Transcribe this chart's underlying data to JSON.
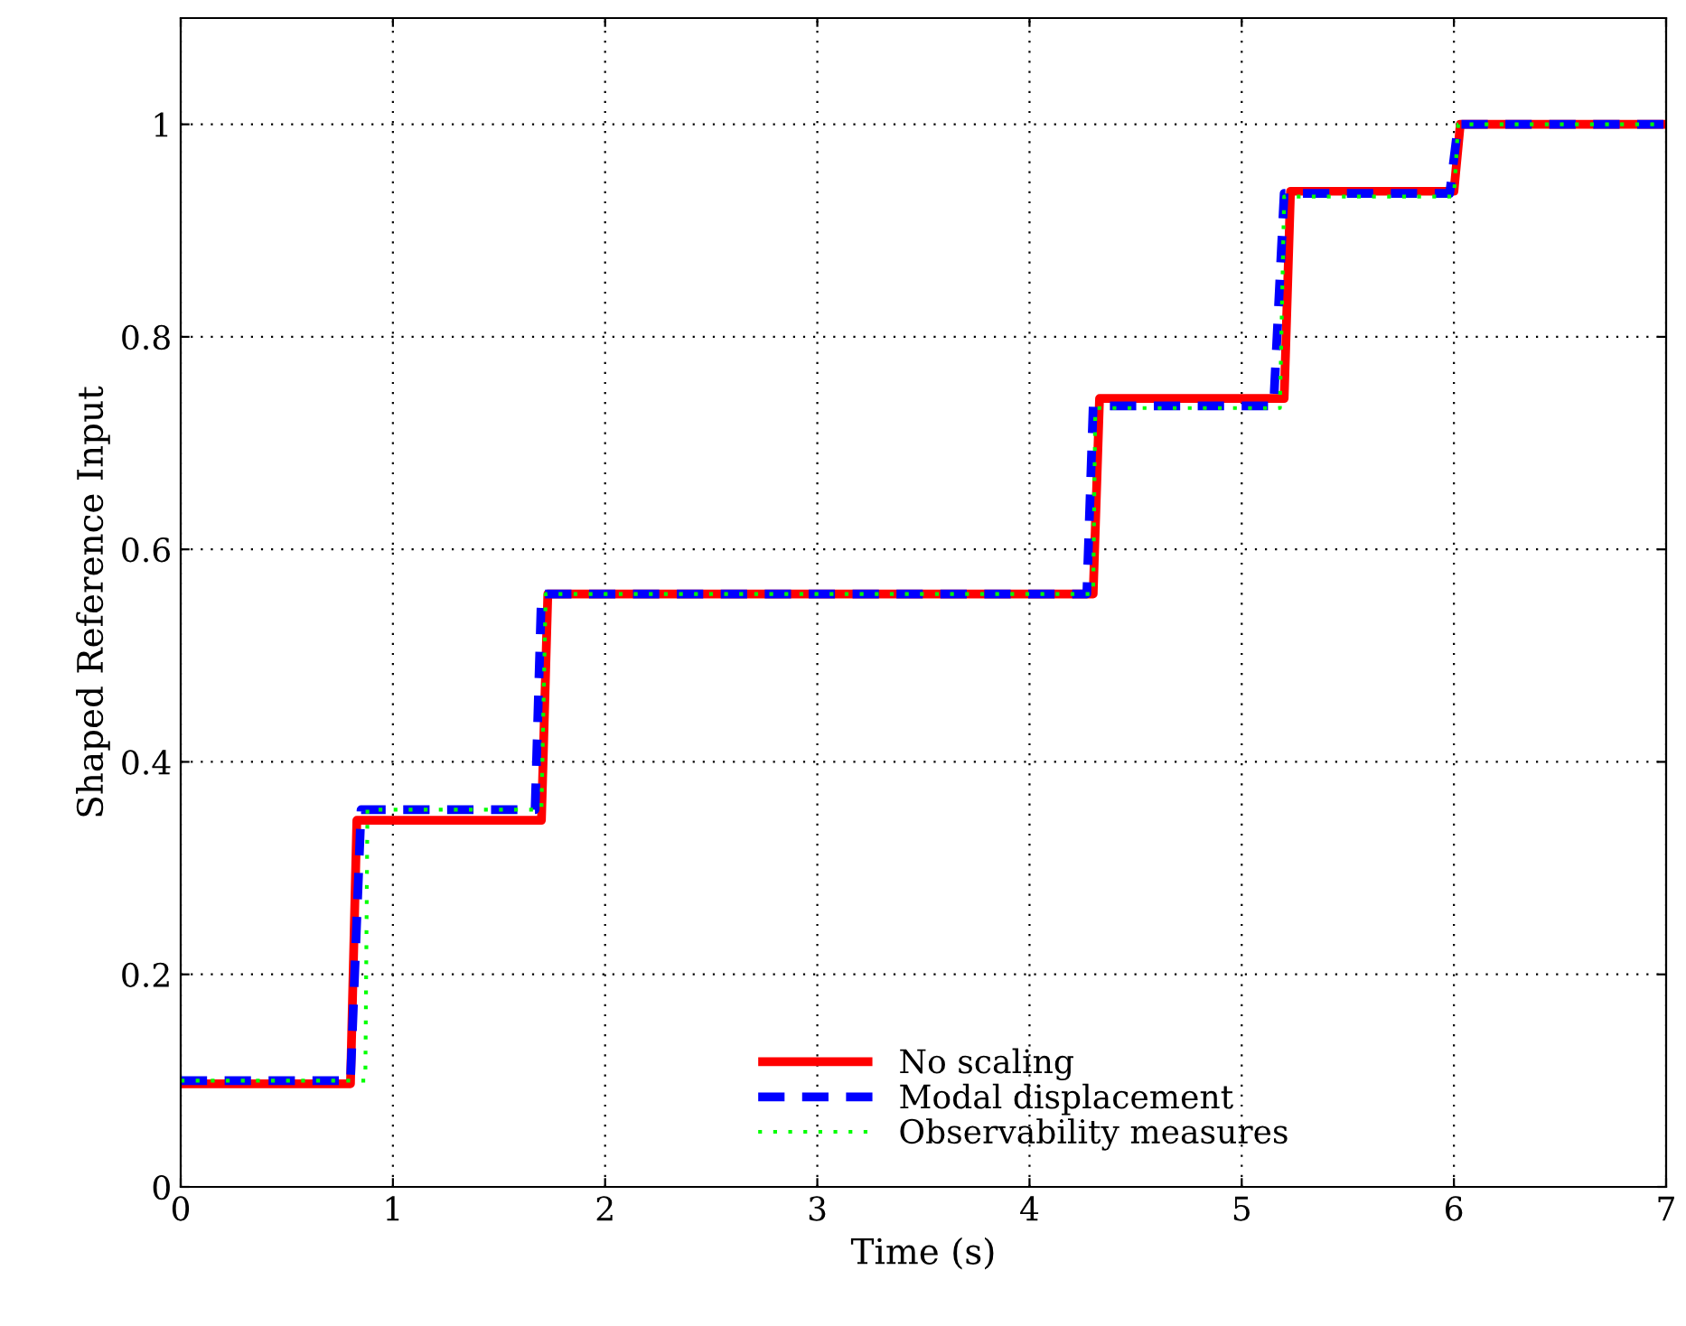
{
  "chart_data": {
    "type": "line",
    "xlabel": "Time (s)",
    "ylabel": "Shaped Reference Input",
    "xlim": [
      0,
      7
    ],
    "xticks": [
      0,
      1,
      2,
      3,
      4,
      5,
      6,
      7
    ],
    "ylim": [
      0,
      1.1
    ],
    "yticks": [
      0,
      0.2,
      0.4,
      0.6,
      0.8,
      1
    ],
    "grid": true,
    "legend": "bottom",
    "marker": "none",
    "series": [
      {
        "name": "No scaling",
        "color": "#ff0000",
        "line_style": "solid",
        "x": [
          0,
          0.8,
          0.83,
          1.7,
          1.73,
          4.3,
          4.33,
          5.2,
          5.23,
          6.0,
          6.03,
          7
        ],
        "values": [
          0.097,
          0.097,
          0.345,
          0.345,
          0.558,
          0.558,
          0.742,
          0.742,
          0.937,
          0.937,
          1.0,
          1.0
        ]
      },
      {
        "name": "Modal displacement",
        "color": "#0000ff",
        "line_style": "dashed",
        "x": [
          0,
          0.8,
          0.85,
          1.67,
          1.7,
          4.27,
          4.3,
          5.15,
          5.2,
          5.98,
          6.02,
          7
        ],
        "values": [
          0.1,
          0.1,
          0.355,
          0.355,
          0.558,
          0.558,
          0.735,
          0.735,
          0.935,
          0.935,
          1.0,
          1.0
        ]
      },
      {
        "name": "Observability measures",
        "color": "#00ff00",
        "line_style": "dotted",
        "x": [
          0,
          0.87,
          0.88,
          1.7,
          1.72,
          4.3,
          4.31,
          5.18,
          5.2,
          6.0,
          6.02,
          7
        ],
        "values": [
          0.1,
          0.1,
          0.355,
          0.355,
          0.558,
          0.558,
          0.733,
          0.733,
          0.932,
          0.932,
          1.0,
          1.0
        ]
      }
    ]
  }
}
